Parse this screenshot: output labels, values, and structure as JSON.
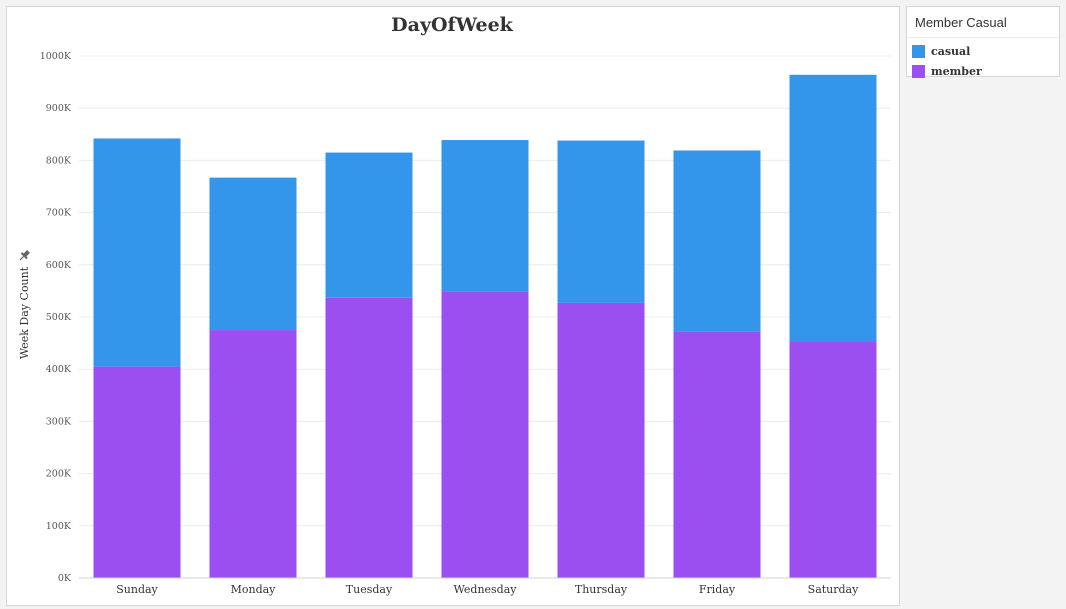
{
  "chart_data": {
    "type": "bar",
    "stacked": true,
    "title": "DayOfWeek",
    "ylabel": "Week Day Count",
    "xlabel": "",
    "categories": [
      "Sunday",
      "Monday",
      "Tuesday",
      "Wednesday",
      "Thursday",
      "Friday",
      "Saturday"
    ],
    "series": [
      {
        "name": "member",
        "color": "#9b4ff0",
        "values": [
          405000,
          475000,
          537000,
          548000,
          527000,
          472000,
          453000
        ]
      },
      {
        "name": "casual",
        "color": "#3496ea",
        "values": [
          437000,
          292000,
          278000,
          291000,
          311000,
          347000,
          511000
        ]
      }
    ],
    "ylim": [
      0,
      1000000
    ],
    "yticks": [
      "0K",
      "100K",
      "200K",
      "300K",
      "400K",
      "500K",
      "600K",
      "700K",
      "800K",
      "900K",
      "1000K"
    ],
    "grid": true,
    "legend_position": "right"
  },
  "legend": {
    "title": "Member Casual",
    "items": [
      {
        "label": "casual",
        "color": "#3496ea"
      },
      {
        "label": "member",
        "color": "#9b4ff0"
      }
    ]
  },
  "icons": {
    "axis_pin": "pin-icon"
  }
}
